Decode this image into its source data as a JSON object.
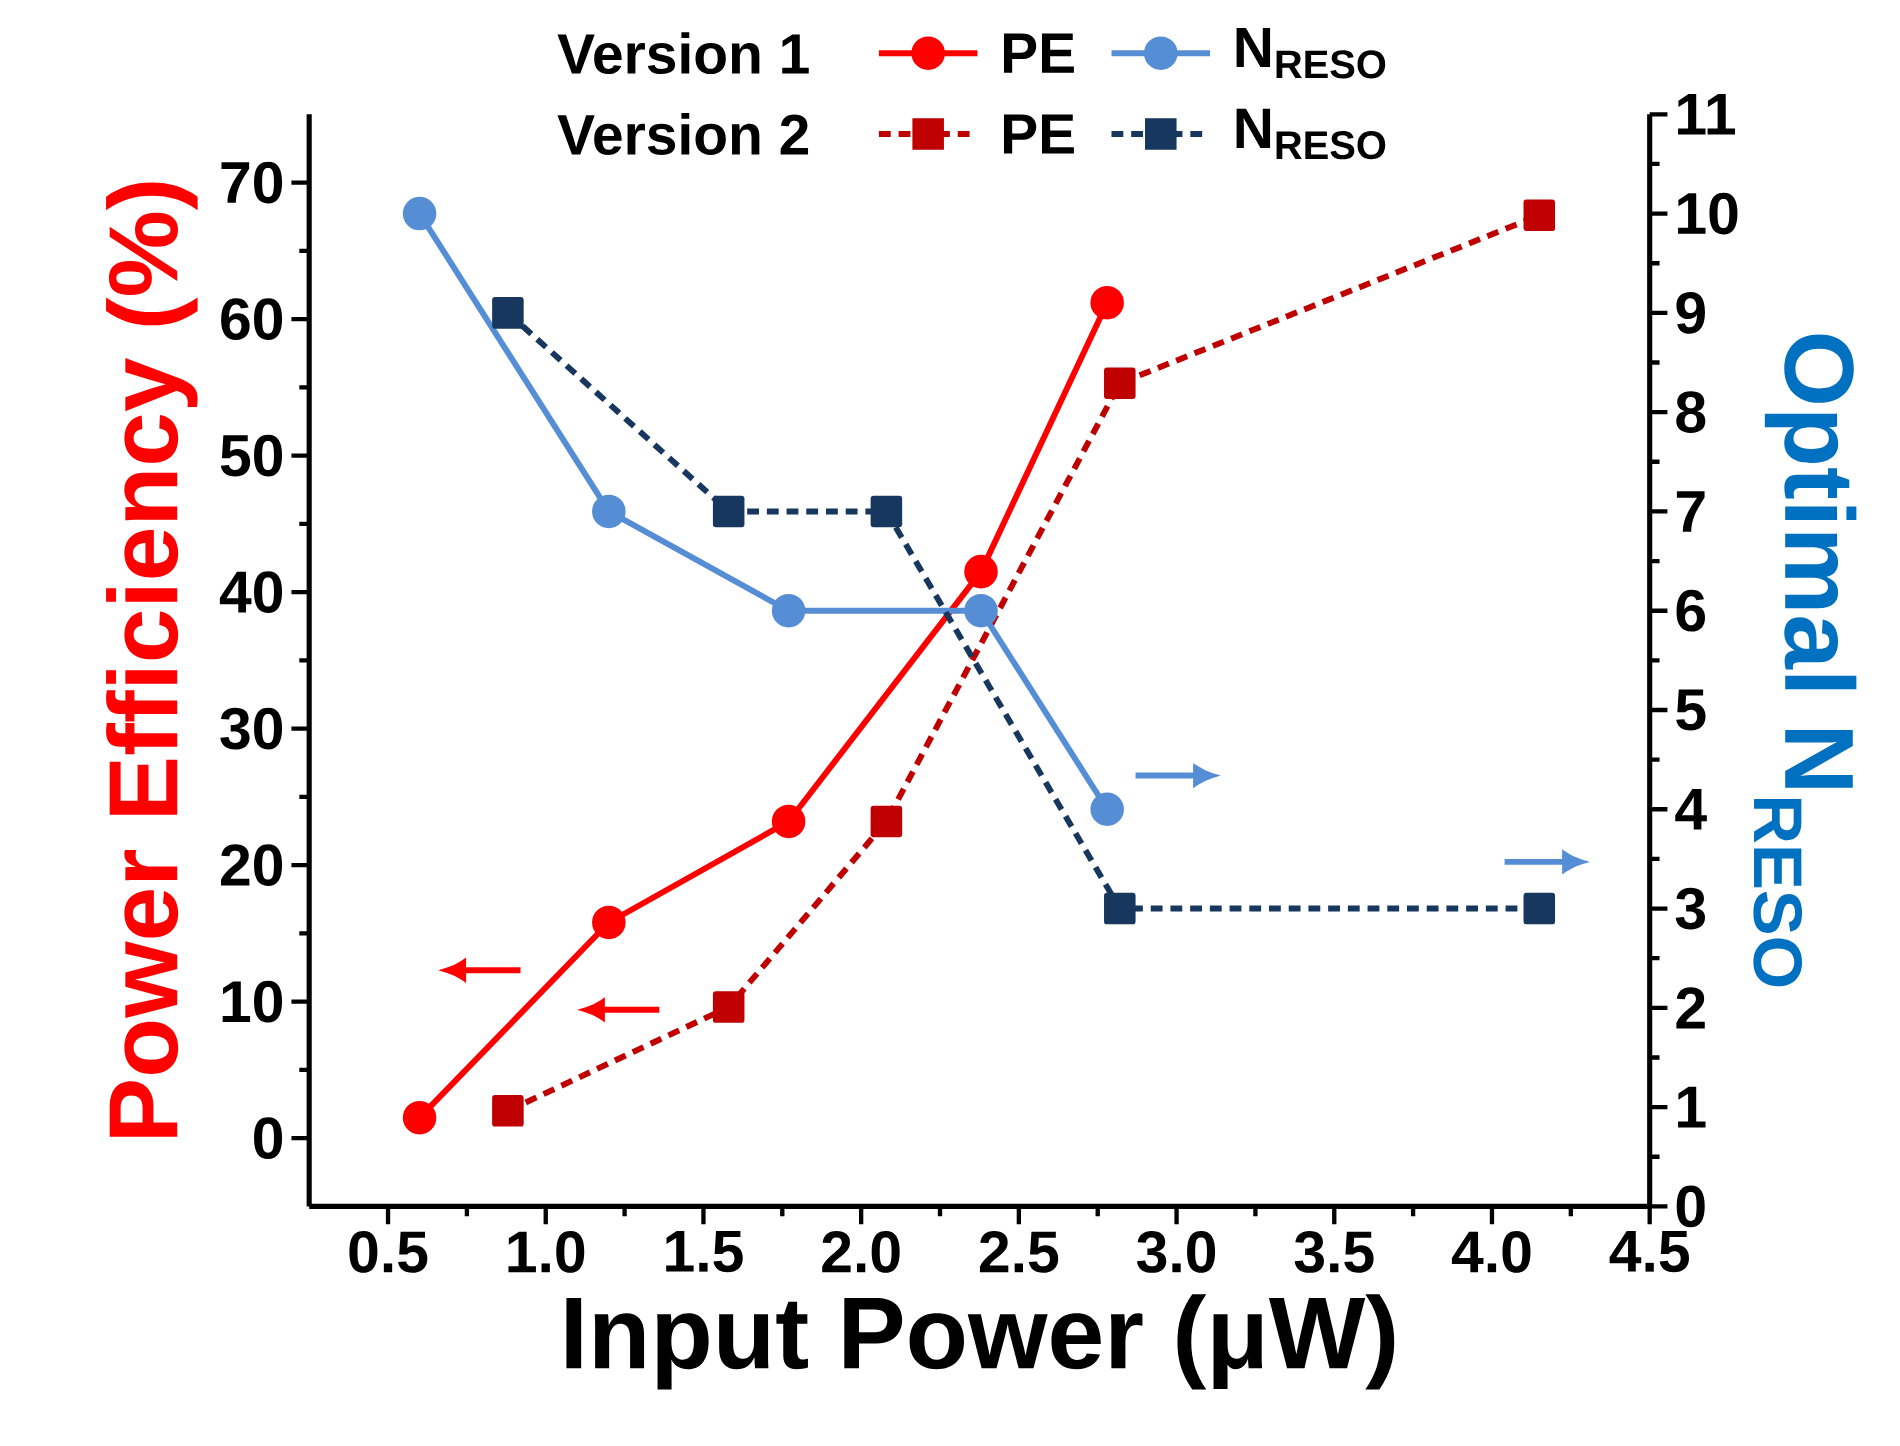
{
  "chart_data": {
    "type": "line",
    "xlabel": "Input Power (μW)",
    "ylabel": "Power Efficiency (%)",
    "y2label": "Optimal N$_{RESO}$",
    "annotations": [
      "Version 1",
      "Version 2"
    ],
    "xlim": [
      0.25,
      4.5
    ],
    "ylim": [
      -5,
      75
    ],
    "y2lim": [
      0,
      11
    ],
    "xticks": [
      0.5,
      {
        "value": 1.0,
        "label": "1.0"
      },
      1.5,
      {
        "value": 2.0,
        "label": "2.0"
      },
      2.5,
      {
        "value": 3.0,
        "label": "3.0"
      },
      3.5,
      {
        "value": 4.0,
        "label": "4.0"
      },
      4.5
    ],
    "yticks": [
      0,
      10,
      20,
      30,
      40,
      50,
      60,
      70
    ],
    "y2ticks": [
      0,
      1,
      2,
      3,
      4,
      5,
      6,
      7,
      8,
      9,
      10,
      11
    ],
    "legend": "top",
    "series": [
      {
        "name": "PE",
        "color": "#ff0000",
        "marker": "circle",
        "line_style": "solid",
        "x": [
          0.6,
          1.2,
          1.77,
          2.38,
          2.78
        ],
        "values": [
          1.5,
          15.8,
          23.2,
          41.5,
          61.2
        ]
      },
      {
        "name": "N$_{RESO}$",
        "color": "#558ed5",
        "marker": "circle",
        "line_style": "solid",
        "axis": "y2",
        "x": [
          0.6,
          1.2,
          1.77,
          2.38,
          2.78
        ],
        "values": [
          10,
          7,
          6,
          6,
          4
        ]
      },
      {
        "name": "PE",
        "color": "#c00000",
        "marker": "square",
        "line_style": "dashed",
        "x": [
          0.88,
          1.58,
          2.08,
          2.82,
          4.15
        ],
        "values": [
          2,
          9.6,
          23.2,
          55.3,
          67.6
        ]
      },
      {
        "name": "N$_{RESO}$",
        "color": "#17375e",
        "marker": "square",
        "line_style": "dashed",
        "axis": "y2",
        "x": [
          0.88,
          1.58,
          2.08,
          2.82,
          4.15
        ],
        "values": [
          9,
          7,
          7,
          3,
          3
        ]
      }
    ]
  }
}
